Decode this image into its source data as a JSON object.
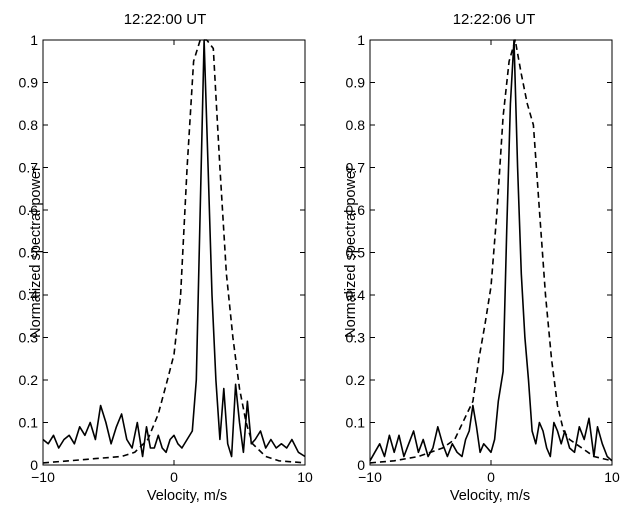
{
  "chart_data": [
    {
      "type": "line",
      "title": "12:22:00 UT",
      "xlabel": "Velocity, m/s",
      "ylabel": "Normalized spectral power",
      "xlim": [
        -10,
        10
      ],
      "ylim": [
        0,
        1
      ],
      "x_ticks": [
        -10,
        0,
        10
      ],
      "y_ticks": [
        0,
        0.1,
        0.2,
        0.3,
        0.4,
        0.5,
        0.6,
        0.7,
        0.8,
        0.9,
        1
      ],
      "y_tick_labels": [
        "0",
        "0.1",
        "0.2",
        "0.3",
        "0.4",
        "0.5",
        "0.6",
        "0.7",
        "0.8",
        "0.9",
        "1"
      ],
      "grid": false,
      "series": [
        {
          "style": "solid",
          "color": "#000000",
          "points": [
            [
              -10,
              0.06
            ],
            [
              -9.6,
              0.05
            ],
            [
              -9.2,
              0.07
            ],
            [
              -8.8,
              0.04
            ],
            [
              -8.4,
              0.06
            ],
            [
              -8,
              0.07
            ],
            [
              -7.6,
              0.05
            ],
            [
              -7.2,
              0.09
            ],
            [
              -6.8,
              0.07
            ],
            [
              -6.4,
              0.1
            ],
            [
              -6,
              0.06
            ],
            [
              -5.6,
              0.14
            ],
            [
              -5.2,
              0.1
            ],
            [
              -4.8,
              0.05
            ],
            [
              -4.4,
              0.09
            ],
            [
              -4,
              0.12
            ],
            [
              -3.6,
              0.06
            ],
            [
              -3.2,
              0.04
            ],
            [
              -2.8,
              0.1
            ],
            [
              -2.4,
              0.02
            ],
            [
              -2.1,
              0.09
            ],
            [
              -1.8,
              0.04
            ],
            [
              -1.5,
              0.04
            ],
            [
              -1.2,
              0.07
            ],
            [
              -0.9,
              0.04
            ],
            [
              -0.6,
              0.03
            ],
            [
              -0.3,
              0.06
            ],
            [
              0,
              0.07
            ],
            [
              0.3,
              0.05
            ],
            [
              0.6,
              0.04
            ],
            [
              1.0,
              0.06
            ],
            [
              1.4,
              0.08
            ],
            [
              1.7,
              0.2
            ],
            [
              2.0,
              0.6
            ],
            [
              2.3,
              1.0
            ],
            [
              2.6,
              0.7
            ],
            [
              2.9,
              0.4
            ],
            [
              3.2,
              0.2
            ],
            [
              3.5,
              0.06
            ],
            [
              3.8,
              0.18
            ],
            [
              4.1,
              0.05
            ],
            [
              4.4,
              0.02
            ],
            [
              4.7,
              0.19
            ],
            [
              5.0,
              0.1
            ],
            [
              5.3,
              0.03
            ],
            [
              5.6,
              0.15
            ],
            [
              5.9,
              0.05
            ],
            [
              6.2,
              0.06
            ],
            [
              6.6,
              0.08
            ],
            [
              7.0,
              0.04
            ],
            [
              7.4,
              0.06
            ],
            [
              7.8,
              0.04
            ],
            [
              8.2,
              0.05
            ],
            [
              8.6,
              0.04
            ],
            [
              9.0,
              0.06
            ],
            [
              9.5,
              0.03
            ],
            [
              10,
              0.02
            ]
          ]
        },
        {
          "style": "dashed",
          "color": "#000000",
          "points": [
            [
              -10,
              0.005
            ],
            [
              -8,
              0.01
            ],
            [
              -6,
              0.015
            ],
            [
              -4,
              0.02
            ],
            [
              -3,
              0.03
            ],
            [
              -2,
              0.06
            ],
            [
              -1.2,
              0.12
            ],
            [
              -0.5,
              0.2
            ],
            [
              0,
              0.26
            ],
            [
              0.5,
              0.4
            ],
            [
              1.0,
              0.7
            ],
            [
              1.5,
              0.95
            ],
            [
              2.0,
              1.0
            ],
            [
              2.5,
              1.0
            ],
            [
              3.0,
              0.98
            ],
            [
              3.5,
              0.7
            ],
            [
              4.0,
              0.45
            ],
            [
              4.5,
              0.3
            ],
            [
              5.0,
              0.18
            ],
            [
              5.5,
              0.1
            ],
            [
              6.0,
              0.05
            ],
            [
              7.0,
              0.02
            ],
            [
              8.0,
              0.01
            ],
            [
              10,
              0.005
            ]
          ]
        }
      ]
    },
    {
      "type": "line",
      "title": "12:22:06 UT",
      "xlabel": "Velocity, m/s",
      "ylabel": "Normalized spectral power",
      "xlim": [
        -10,
        10
      ],
      "ylim": [
        0,
        1
      ],
      "x_ticks": [
        -10,
        0,
        10
      ],
      "y_ticks": [
        0,
        0.1,
        0.2,
        0.3,
        0.4,
        0.5,
        0.6,
        0.7,
        0.8,
        0.9,
        1
      ],
      "y_tick_labels": [
        "0",
        "0.1",
        "0.2",
        "0.3",
        "0.4",
        "0.5",
        "0.6",
        "0.7",
        "0.8",
        "0.9",
        "1"
      ],
      "grid": false,
      "series": [
        {
          "style": "solid",
          "color": "#000000",
          "points": [
            [
              -10,
              0.01
            ],
            [
              -9.6,
              0.03
            ],
            [
              -9.2,
              0.05
            ],
            [
              -8.8,
              0.02
            ],
            [
              -8.4,
              0.07
            ],
            [
              -8,
              0.03
            ],
            [
              -7.6,
              0.07
            ],
            [
              -7.2,
              0.02
            ],
            [
              -6.8,
              0.05
            ],
            [
              -6.4,
              0.08
            ],
            [
              -6,
              0.03
            ],
            [
              -5.6,
              0.06
            ],
            [
              -5.2,
              0.02
            ],
            [
              -4.8,
              0.04
            ],
            [
              -4.4,
              0.09
            ],
            [
              -4,
              0.05
            ],
            [
              -3.6,
              0.02
            ],
            [
              -3.2,
              0.05
            ],
            [
              -2.8,
              0.03
            ],
            [
              -2.4,
              0.02
            ],
            [
              -2.1,
              0.06
            ],
            [
              -1.8,
              0.08
            ],
            [
              -1.5,
              0.14
            ],
            [
              -1.2,
              0.09
            ],
            [
              -0.9,
              0.03
            ],
            [
              -0.6,
              0.05
            ],
            [
              -0.3,
              0.04
            ],
            [
              0,
              0.03
            ],
            [
              0.3,
              0.06
            ],
            [
              0.6,
              0.15
            ],
            [
              1.0,
              0.22
            ],
            [
              1.3,
              0.55
            ],
            [
              1.6,
              0.85
            ],
            [
              1.9,
              1.0
            ],
            [
              2.2,
              0.7
            ],
            [
              2.5,
              0.45
            ],
            [
              2.8,
              0.3
            ],
            [
              3.1,
              0.2
            ],
            [
              3.4,
              0.08
            ],
            [
              3.7,
              0.05
            ],
            [
              4.0,
              0.1
            ],
            [
              4.3,
              0.08
            ],
            [
              4.6,
              0.04
            ],
            [
              4.9,
              0.02
            ],
            [
              5.2,
              0.1
            ],
            [
              5.5,
              0.08
            ],
            [
              5.8,
              0.05
            ],
            [
              6.1,
              0.08
            ],
            [
              6.5,
              0.04
            ],
            [
              6.9,
              0.03
            ],
            [
              7.3,
              0.09
            ],
            [
              7.7,
              0.06
            ],
            [
              8.1,
              0.11
            ],
            [
              8.5,
              0.02
            ],
            [
              8.8,
              0.09
            ],
            [
              9.2,
              0.05
            ],
            [
              9.6,
              0.02
            ],
            [
              10,
              0.01
            ]
          ]
        },
        {
          "style": "dashed",
          "color": "#000000",
          "points": [
            [
              -10,
              0.005
            ],
            [
              -8,
              0.01
            ],
            [
              -6,
              0.02
            ],
            [
              -4,
              0.04
            ],
            [
              -3,
              0.06
            ],
            [
              -2,
              0.12
            ],
            [
              -1.5,
              0.15
            ],
            [
              -1.0,
              0.25
            ],
            [
              -0.5,
              0.33
            ],
            [
              0,
              0.42
            ],
            [
              0.5,
              0.6
            ],
            [
              1.0,
              0.82
            ],
            [
              1.5,
              0.95
            ],
            [
              2.0,
              1.0
            ],
            [
              2.5,
              0.92
            ],
            [
              3.0,
              0.85
            ],
            [
              3.5,
              0.8
            ],
            [
              4.0,
              0.6
            ],
            [
              4.5,
              0.4
            ],
            [
              5.0,
              0.25
            ],
            [
              5.5,
              0.14
            ],
            [
              6.0,
              0.08
            ],
            [
              6.5,
              0.06
            ],
            [
              7.5,
              0.04
            ],
            [
              8.5,
              0.02
            ],
            [
              10,
              0.01
            ]
          ]
        }
      ]
    }
  ]
}
